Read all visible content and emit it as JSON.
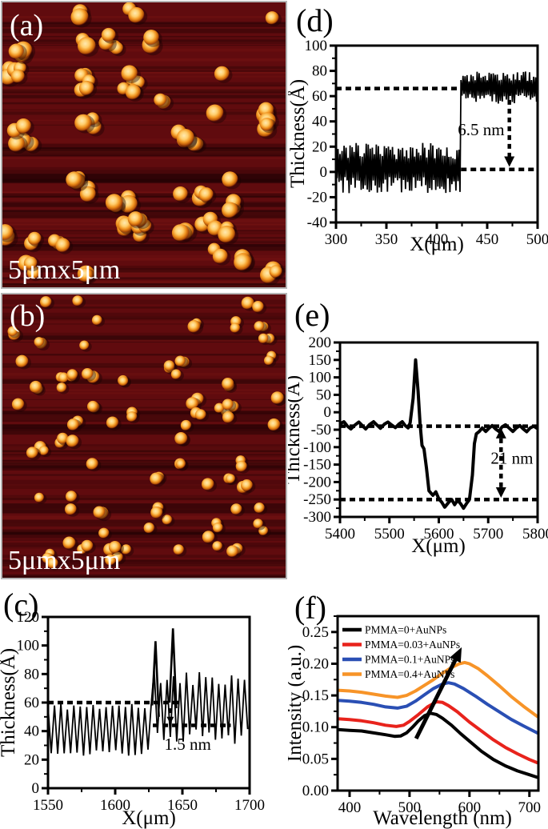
{
  "panels": {
    "a": {
      "label": "(a)",
      "scale_label": "5μmx5μm"
    },
    "b": {
      "label": "(b)",
      "scale_label": "5μmx5μm"
    },
    "c": {
      "label": "(c)"
    },
    "d": {
      "label": "(d)"
    },
    "e": {
      "label": "(e)"
    },
    "f": {
      "label": "(f)"
    }
  },
  "afm": {
    "background_color": "#600b0e",
    "streak_dark": "#2b0406",
    "streak_light": "#8c1c16",
    "particle_core": "#ffe9b0",
    "particle_mid": "#f0931f",
    "particle_rim": "#b35106",
    "panel_a_particle_clusters": 50,
    "panel_b_particle_clusters": 76
  },
  "chart_data": [
    {
      "id": "c",
      "type": "line",
      "title": "",
      "xlabel": "X(μm)",
      "ylabel": "Thickness(Å)",
      "xlim": [
        1550,
        1700
      ],
      "ylim": [
        0,
        120
      ],
      "xticks": [
        1550,
        1600,
        1650,
        1700
      ],
      "yticks": [
        0,
        20,
        40,
        60,
        80,
        100,
        120
      ],
      "x_minor_step": 25,
      "y_minor_step": 10,
      "grid": false,
      "line_color": "#000000",
      "seed": 11,
      "noise_segments": [
        {
          "x0": 1550,
          "x1": 1629,
          "mean": 41,
          "amp": 19,
          "dx": 2.4,
          "reg": 0.72
        },
        {
          "x0": 1629,
          "x1": 1700,
          "mean": 57,
          "amp": 26,
          "dx": 2.4,
          "reg": 0.58
        }
      ],
      "extra_peaks": [
        [
          [
            1627.5,
            58
          ],
          [
            1630,
            103
          ],
          [
            1632.5,
            50
          ]
        ],
        [
          [
            1640.5,
            60
          ],
          [
            1643,
            112
          ],
          [
            1645.5,
            56
          ]
        ]
      ],
      "dashed_lines": [
        {
          "y": 60,
          "x0": 1550,
          "x1": 1648
        },
        {
          "y": 44,
          "x0": 1628,
          "x1": 1686
        }
      ],
      "arrows": [
        {
          "x": 1641,
          "y0": 56,
          "y1": 45,
          "heads": "down",
          "size": 9
        }
      ],
      "notes": [
        {
          "text": "1.5 nm",
          "x": 1654,
          "y": 27
        }
      ]
    },
    {
      "id": "d",
      "type": "line",
      "title": "",
      "xlabel": "X(μm)",
      "ylabel": "Thickness(Å)",
      "xlim": [
        300,
        500
      ],
      "ylim": [
        -40,
        100
      ],
      "xticks": [
        300,
        350,
        400,
        450,
        500
      ],
      "yticks": [
        -40,
        -20,
        0,
        20,
        40,
        60,
        80,
        100
      ],
      "x_minor_step": 25,
      "y_minor_step": 10,
      "grid": false,
      "line_color": "#000000",
      "seed": 23,
      "noise_segments": [
        {
          "x0": 300,
          "x1": 423,
          "mean": 3,
          "amp": 20,
          "dx": 1.0,
          "reg": 0.35
        },
        {
          "x0": 424,
          "x1": 500,
          "mean": 67,
          "amp": 13,
          "dx": 1.0,
          "reg": 0.35
        }
      ],
      "extra_peaks": [],
      "dashed_lines": [
        {
          "y": 66,
          "x0": 300,
          "x1": 427
        },
        {
          "y": 2,
          "x0": 424,
          "x1": 500
        }
      ],
      "arrows": [
        {
          "x": 472,
          "y0": 64,
          "y1": 4,
          "heads": "down",
          "size": 13
        }
      ],
      "notes": [
        {
          "text": "6.5 nm",
          "x": 444,
          "y": 29
        }
      ]
    },
    {
      "id": "e",
      "type": "line",
      "title": "",
      "xlabel": "X(μm)",
      "ylabel": "Thickness(Å)",
      "xlim": [
        5400,
        5800
      ],
      "ylim": [
        -300,
        200
      ],
      "xticks": [
        5400,
        5500,
        5600,
        5700,
        5800
      ],
      "yticks": [
        -300,
        -250,
        -200,
        -150,
        -100,
        -50,
        0,
        50,
        100,
        150,
        200
      ],
      "x_minor_step": 50,
      "y_minor_step": 25,
      "grid": false,
      "series": [
        {
          "name": "profile",
          "color": "#000000",
          "width": 4,
          "points": [
            [
              5400,
              -33
            ],
            [
              5408,
              -27
            ],
            [
              5415,
              -40
            ],
            [
              5422,
              -48
            ],
            [
              5430,
              -37
            ],
            [
              5438,
              -28
            ],
            [
              5445,
              -38
            ],
            [
              5452,
              -48
            ],
            [
              5460,
              -35
            ],
            [
              5468,
              -27
            ],
            [
              5475,
              -37
            ],
            [
              5482,
              -46
            ],
            [
              5490,
              -34
            ],
            [
              5497,
              -28
            ],
            [
              5505,
              -37
            ],
            [
              5512,
              -44
            ],
            [
              5520,
              -33
            ],
            [
              5526,
              -27
            ],
            [
              5532,
              -38
            ],
            [
              5538,
              -45
            ],
            [
              5542,
              -30
            ],
            [
              5548,
              40
            ],
            [
              5553,
              150
            ],
            [
              5558,
              60
            ],
            [
              5562,
              -30
            ],
            [
              5566,
              -95
            ],
            [
              5570,
              -105
            ],
            [
              5575,
              -160
            ],
            [
              5580,
              -225
            ],
            [
              5588,
              -238
            ],
            [
              5594,
              -228
            ],
            [
              5600,
              -248
            ],
            [
              5606,
              -258
            ],
            [
              5612,
              -272
            ],
            [
              5620,
              -258
            ],
            [
              5626,
              -250
            ],
            [
              5632,
              -265
            ],
            [
              5638,
              -252
            ],
            [
              5644,
              -262
            ],
            [
              5650,
              -275
            ],
            [
              5656,
              -262
            ],
            [
              5662,
              -250
            ],
            [
              5668,
              -180
            ],
            [
              5672,
              -90
            ],
            [
              5676,
              -62
            ],
            [
              5682,
              -55
            ],
            [
              5688,
              -45
            ],
            [
              5695,
              -55
            ],
            [
              5702,
              -45
            ],
            [
              5708,
              -38
            ],
            [
              5715,
              -48
            ],
            [
              5722,
              -55
            ],
            [
              5728,
              -42
            ],
            [
              5735,
              -36
            ],
            [
              5742,
              -45
            ],
            [
              5750,
              -55
            ],
            [
              5757,
              -45
            ],
            [
              5764,
              -38
            ],
            [
              5771,
              -48
            ],
            [
              5778,
              -56
            ],
            [
              5785,
              -45
            ],
            [
              5792,
              -40
            ],
            [
              5800,
              -47
            ]
          ]
        }
      ],
      "dashed_lines": [
        {
          "y": -40,
          "x0": 5400,
          "x1": 5800
        },
        {
          "y": -250,
          "x0": 5400,
          "x1": 5800
        }
      ],
      "arrows": [
        {
          "x": 5726,
          "y0": -45,
          "y1": -245,
          "heads": "both",
          "size": 13
        }
      ],
      "notes": [
        {
          "text": "21 nm",
          "x": 5748,
          "y": -148
        }
      ]
    },
    {
      "id": "f",
      "type": "line",
      "title": "",
      "xlabel": "Wavelength (nm)",
      "ylabel": "Intensity (a.u.)",
      "xlim": [
        380,
        715
      ],
      "ylim": [
        0,
        0.275
      ],
      "xticks": [
        400,
        500,
        600,
        700
      ],
      "yticks": [
        0,
        0.05,
        0.1,
        0.15,
        0.2,
        0.25
      ],
      "ytick_labels": [
        "0.00",
        "0.05",
        "0.10",
        "0.15",
        "0.20",
        "0.25"
      ],
      "x_minor_step": 50,
      "y_minor_step": 0.025,
      "grid": false,
      "legend_position": "top-left",
      "series": [
        {
          "name": "PMMA=0+AuNPs",
          "color": "#000000",
          "width": 4,
          "points": [
            [
              383,
              0.096
            ],
            [
              400,
              0.095
            ],
            [
              420,
              0.094
            ],
            [
              440,
              0.091
            ],
            [
              460,
              0.088
            ],
            [
              475,
              0.0855
            ],
            [
              485,
              0.086
            ],
            [
              495,
              0.091
            ],
            [
              505,
              0.1
            ],
            [
              515,
              0.11
            ],
            [
              525,
              0.118
            ],
            [
              535,
              0.122
            ],
            [
              545,
              0.12
            ],
            [
              555,
              0.114
            ],
            [
              570,
              0.103
            ],
            [
              585,
              0.09
            ],
            [
              600,
              0.078
            ],
            [
              620,
              0.062
            ],
            [
              640,
              0.049
            ],
            [
              660,
              0.039
            ],
            [
              680,
              0.031
            ],
            [
              700,
              0.025
            ],
            [
              713,
              0.021
            ]
          ]
        },
        {
          "name": "PMMA=0.03+AuNPs",
          "color": "#e8231c",
          "width": 4,
          "points": [
            [
              383,
              0.113
            ],
            [
              400,
              0.112
            ],
            [
              420,
              0.11
            ],
            [
              440,
              0.107
            ],
            [
              460,
              0.103
            ],
            [
              478,
              0.101
            ],
            [
              490,
              0.103
            ],
            [
              500,
              0.109
            ],
            [
              515,
              0.12
            ],
            [
              530,
              0.132
            ],
            [
              545,
              0.14
            ],
            [
              555,
              0.139
            ],
            [
              565,
              0.134
            ],
            [
              580,
              0.124
            ],
            [
              600,
              0.108
            ],
            [
              620,
              0.094
            ],
            [
              640,
              0.08
            ],
            [
              660,
              0.068
            ],
            [
              680,
              0.058
            ],
            [
              700,
              0.049
            ],
            [
              713,
              0.044
            ]
          ]
        },
        {
          "name": "PMMA=0.1+AuNPs",
          "color": "#2a4fb4",
          "width": 4,
          "points": [
            [
              383,
              0.142
            ],
            [
              400,
              0.141
            ],
            [
              420,
              0.139
            ],
            [
              440,
              0.136
            ],
            [
              460,
              0.132
            ],
            [
              480,
              0.13
            ],
            [
              495,
              0.133
            ],
            [
              510,
              0.141
            ],
            [
              525,
              0.151
            ],
            [
              540,
              0.161
            ],
            [
              555,
              0.168
            ],
            [
              565,
              0.17
            ],
            [
              575,
              0.168
            ],
            [
              590,
              0.161
            ],
            [
              610,
              0.149
            ],
            [
              630,
              0.136
            ],
            [
              650,
              0.124
            ],
            [
              670,
              0.112
            ],
            [
              690,
              0.102
            ],
            [
              713,
              0.091
            ]
          ]
        },
        {
          "name": "PMMA=0.4+AuNPs",
          "color": "#f79428",
          "width": 4,
          "points": [
            [
              383,
              0.158
            ],
            [
              400,
              0.157
            ],
            [
              420,
              0.155
            ],
            [
              440,
              0.152
            ],
            [
              460,
              0.149
            ],
            [
              480,
              0.147
            ],
            [
              495,
              0.15
            ],
            [
              510,
              0.157
            ],
            [
              525,
              0.166
            ],
            [
              540,
              0.175
            ],
            [
              555,
              0.185
            ],
            [
              570,
              0.194
            ],
            [
              583,
              0.2
            ],
            [
              592,
              0.202
            ],
            [
              600,
              0.2
            ],
            [
              615,
              0.192
            ],
            [
              630,
              0.181
            ],
            [
              650,
              0.165
            ],
            [
              670,
              0.148
            ],
            [
              690,
              0.133
            ],
            [
              713,
              0.117
            ]
          ]
        }
      ],
      "free_arrow": {
        "from": [
          511,
          0.082
        ],
        "to": [
          587,
          0.226
        ],
        "width": 5
      },
      "dashed_lines": [],
      "arrows": [],
      "notes": []
    }
  ]
}
